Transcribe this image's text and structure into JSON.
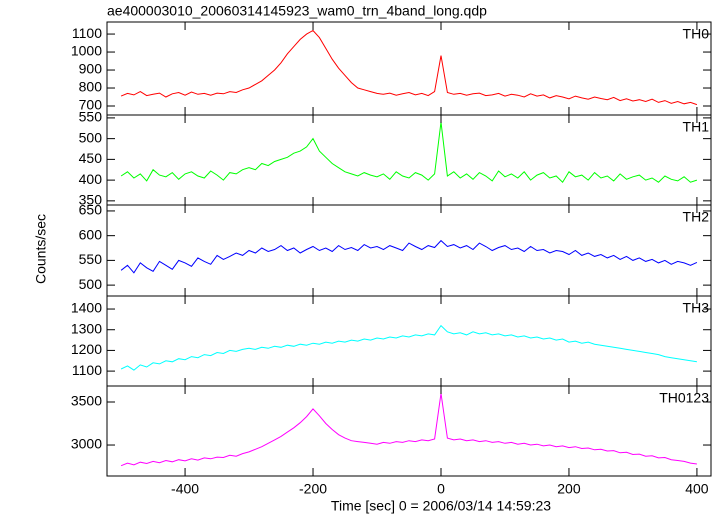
{
  "chart_data": {
    "type": "line",
    "title": "ae400003010_20060314145923_wam0_trn_4band_long.qdp",
    "xlabel": "Time [sec] 0 = 2006/03/14 14:59:23",
    "ylabel": "Counts/sec",
    "xlim": [
      -522,
      422
    ],
    "xticks": [
      -400,
      -200,
      0,
      200,
      400
    ],
    "x": [
      -500,
      -490,
      -480,
      -470,
      -460,
      -450,
      -440,
      -430,
      -420,
      -410,
      -400,
      -390,
      -380,
      -370,
      -360,
      -350,
      -340,
      -330,
      -320,
      -310,
      -300,
      -290,
      -280,
      -270,
      -260,
      -250,
      -240,
      -230,
      -220,
      -210,
      -200,
      -190,
      -180,
      -170,
      -160,
      -150,
      -140,
      -130,
      -120,
      -110,
      -100,
      -90,
      -80,
      -70,
      -60,
      -50,
      -40,
      -30,
      -20,
      -10,
      0,
      10,
      20,
      30,
      40,
      50,
      60,
      70,
      80,
      90,
      100,
      110,
      120,
      130,
      140,
      150,
      160,
      170,
      180,
      190,
      200,
      210,
      220,
      230,
      240,
      250,
      260,
      270,
      280,
      290,
      300,
      310,
      320,
      330,
      340,
      350,
      360,
      370,
      380,
      390,
      400
    ],
    "series": [
      {
        "name": "TH0",
        "color": "#ff0000",
        "ylim": [
          650,
          1167
        ],
        "yticks": [
          700,
          800,
          900,
          1000,
          1100
        ],
        "values": [
          755,
          770,
          762,
          780,
          758,
          765,
          772,
          750,
          768,
          775,
          760,
          778,
          765,
          770,
          760,
          772,
          768,
          780,
          775,
          790,
          800,
          820,
          840,
          870,
          900,
          940,
          990,
          1030,
          1070,
          1100,
          1120,
          1080,
          1020,
          960,
          910,
          870,
          830,
          800,
          790,
          780,
          770,
          765,
          772,
          760,
          768,
          775,
          762,
          770,
          758,
          780,
          980,
          775,
          765,
          770,
          760,
          768,
          772,
          758,
          762,
          770,
          755,
          765,
          760,
          750,
          768,
          755,
          762,
          745,
          758,
          750,
          740,
          755,
          745,
          738,
          750,
          742,
          735,
          748,
          730,
          740,
          728,
          735,
          725,
          738,
          720,
          730,
          715,
          725,
          712,
          720,
          708
        ]
      },
      {
        "name": "TH1",
        "color": "#00ff00",
        "ylim": [
          340,
          557
        ],
        "yticks": [
          350,
          400,
          450,
          500,
          550
        ],
        "values": [
          410,
          420,
          405,
          415,
          398,
          425,
          412,
          408,
          418,
          402,
          415,
          420,
          410,
          405,
          422,
          412,
          400,
          418,
          415,
          425,
          430,
          425,
          440,
          435,
          445,
          450,
          455,
          465,
          470,
          480,
          500,
          470,
          455,
          440,
          430,
          420,
          415,
          410,
          418,
          412,
          408,
          415,
          402,
          420,
          410,
          405,
          418,
          412,
          400,
          415,
          540,
          410,
          420,
          405,
          415,
          402,
          418,
          410,
          398,
          422,
          408,
          415,
          405,
          420,
          400,
          412,
          418,
          405,
          410,
          395,
          420,
          408,
          412,
          400,
          418,
          405,
          410,
          398,
          415,
          402,
          408,
          412,
          400,
          405,
          395,
          410,
          402,
          398,
          408,
          395,
          400
        ]
      },
      {
        "name": "TH2",
        "color": "#0000ff",
        "ylim": [
          478,
          662
        ],
        "yticks": [
          500,
          550,
          600,
          650
        ],
        "values": [
          530,
          540,
          525,
          545,
          535,
          528,
          548,
          540,
          532,
          550,
          545,
          538,
          555,
          548,
          542,
          560,
          552,
          558,
          565,
          560,
          570,
          565,
          575,
          568,
          572,
          580,
          570,
          575,
          565,
          572,
          578,
          570,
          575,
          568,
          580,
          572,
          576,
          570,
          582,
          575,
          578,
          572,
          580,
          575,
          570,
          585,
          578,
          572,
          580,
          576,
          590,
          578,
          582,
          575,
          580,
          572,
          585,
          578,
          570,
          576,
          580,
          572,
          575,
          568,
          578,
          570,
          572,
          565,
          570,
          568,
          562,
          570,
          560,
          565,
          558,
          562,
          555,
          560,
          552,
          558,
          550,
          555,
          548,
          552,
          545,
          550,
          542,
          548,
          545,
          540,
          546
        ]
      },
      {
        "name": "TH3",
        "color": "#00ffff",
        "ylim": [
          1028,
          1463
        ],
        "yticks": [
          1100,
          1200,
          1300,
          1400
        ],
        "values": [
          1110,
          1125,
          1105,
          1130,
          1120,
          1140,
          1135,
          1150,
          1145,
          1160,
          1155,
          1170,
          1165,
          1180,
          1175,
          1190,
          1185,
          1200,
          1195,
          1205,
          1210,
          1205,
          1215,
          1210,
          1220,
          1215,
          1225,
          1220,
          1230,
          1225,
          1235,
          1230,
          1240,
          1235,
          1245,
          1240,
          1250,
          1245,
          1255,
          1250,
          1260,
          1255,
          1265,
          1260,
          1270,
          1265,
          1275,
          1270,
          1280,
          1275,
          1320,
          1290,
          1280,
          1285,
          1275,
          1290,
          1280,
          1285,
          1275,
          1280,
          1270,
          1275,
          1265,
          1270,
          1260,
          1265,
          1255,
          1260,
          1250,
          1255,
          1240,
          1245,
          1235,
          1240,
          1230,
          1225,
          1220,
          1215,
          1210,
          1205,
          1200,
          1195,
          1190,
          1185,
          1180,
          1170,
          1165,
          1160,
          1155,
          1150,
          1145
        ]
      },
      {
        "name": "TH0123",
        "color": "#ff00ff",
        "ylim": [
          2640,
          3686
        ],
        "yticks": [
          3000,
          3500
        ],
        "values": [
          2760,
          2790,
          2770,
          2800,
          2785,
          2810,
          2795,
          2820,
          2805,
          2830,
          2815,
          2840,
          2825,
          2850,
          2840,
          2860,
          2855,
          2880,
          2870,
          2900,
          2920,
          2950,
          2980,
          3020,
          3060,
          3100,
          3150,
          3200,
          3260,
          3330,
          3420,
          3340,
          3250,
          3180,
          3120,
          3080,
          3050,
          3040,
          3030,
          3020,
          3010,
          3030,
          3020,
          3040,
          3030,
          3050,
          3040,
          3060,
          3050,
          3070,
          3600,
          3080,
          3060,
          3070,
          3050,
          3060,
          3040,
          3050,
          3030,
          3040,
          3020,
          3030,
          3010,
          3020,
          3000,
          3010,
          2990,
          3000,
          2980,
          2990,
          2970,
          2980,
          2960,
          2965,
          2945,
          2950,
          2930,
          2935,
          2910,
          2915,
          2890,
          2895,
          2870,
          2875,
          2850,
          2855,
          2830,
          2820,
          2810,
          2790,
          2780
        ]
      }
    ]
  }
}
